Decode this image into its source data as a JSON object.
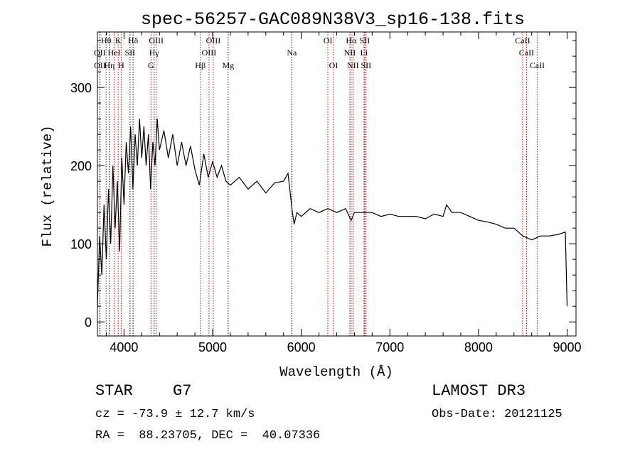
{
  "chart_data": {
    "type": "line",
    "title": "spec-56257-GAC089N38V3_sp16-138.fits",
    "xlabel": "Wavelength (Å)",
    "ylabel": "Flux (relative)",
    "xlim": [
      3700,
      9100
    ],
    "ylim": [
      -18,
      371
    ],
    "xticks": [
      4000,
      5000,
      6000,
      7000,
      8000,
      9000
    ],
    "yticks": [
      0,
      100,
      200,
      300
    ],
    "grid": false,
    "series": [
      {
        "name": "spectrum",
        "color": "#000000",
        "x": [
          3700,
          3725,
          3750,
          3775,
          3800,
          3825,
          3850,
          3875,
          3900,
          3925,
          3950,
          3975,
          4000,
          4025,
          4050,
          4075,
          4100,
          4125,
          4150,
          4175,
          4200,
          4225,
          4250,
          4275,
          4300,
          4325,
          4350,
          4375,
          4400,
          4450,
          4500,
          4550,
          4600,
          4650,
          4700,
          4750,
          4800,
          4850,
          4900,
          4950,
          5000,
          5050,
          5100,
          5150,
          5200,
          5300,
          5400,
          5500,
          5600,
          5700,
          5800,
          5850,
          5900,
          5920,
          5950,
          6000,
          6100,
          6200,
          6300,
          6400,
          6500,
          6563,
          6600,
          6700,
          6800,
          6900,
          7000,
          7100,
          7200,
          7300,
          7400,
          7500,
          7600,
          7640,
          7700,
          7800,
          7900,
          8000,
          8100,
          8200,
          8300,
          8400,
          8500,
          8600,
          8700,
          8800,
          8900,
          8980,
          9000
        ],
        "y": [
          20,
          110,
          60,
          150,
          80,
          170,
          100,
          200,
          120,
          180,
          90,
          210,
          150,
          230,
          190,
          250,
          170,
          240,
          200,
          260,
          210,
          250,
          200,
          240,
          170,
          230,
          200,
          260,
          220,
          245,
          210,
          240,
          200,
          230,
          200,
          225,
          195,
          175,
          215,
          185,
          205,
          185,
          200,
          180,
          175,
          185,
          170,
          180,
          165,
          178,
          180,
          190,
          140,
          125,
          140,
          135,
          145,
          140,
          145,
          140,
          145,
          130,
          140,
          140,
          140,
          135,
          138,
          135,
          135,
          135,
          132,
          138,
          135,
          150,
          140,
          140,
          135,
          130,
          128,
          125,
          120,
          120,
          110,
          105,
          110,
          110,
          112,
          115,
          20
        ]
      }
    ],
    "lines": [
      {
        "label": "Hθ",
        "wave": 3798,
        "color": "#cc0000"
      },
      {
        "label": "K",
        "wave": 3934,
        "color": "#cc0000"
      },
      {
        "label": "Hδ",
        "wave": 4102,
        "color": "#000000"
      },
      {
        "label": "OIII",
        "wave": 4363,
        "color": "#cc0000"
      },
      {
        "label": "OIII",
        "wave": 5007,
        "color": "#cc0000"
      },
      {
        "label": "OI",
        "wave": 6300,
        "color": "#cc0000"
      },
      {
        "label": "Hα",
        "wave": 6563,
        "color": "#cc0000"
      },
      {
        "label": "SII",
        "wave": 6716,
        "color": "#cc0000"
      },
      {
        "label": "CaII",
        "wave": 8498,
        "color": "#cc0000"
      },
      {
        "label": "OII",
        "wave": 3727,
        "color": "#cc0000"
      },
      {
        "label": "HeI",
        "wave": 3889,
        "color": "#cc0000"
      },
      {
        "label": "SII",
        "wave": 4068,
        "color": "#000000"
      },
      {
        "label": "Hγ",
        "wave": 4340,
        "color": "#000000"
      },
      {
        "label": "OIII",
        "wave": 4959,
        "color": "#cc0000"
      },
      {
        "label": "Na",
        "wave": 5893,
        "color": "#000000"
      },
      {
        "label": "NII",
        "wave": 6548,
        "color": "#cc0000"
      },
      {
        "label": "Li",
        "wave": 6708,
        "color": "#cc0000"
      },
      {
        "label": "CaII",
        "wave": 8542,
        "color": "#cc0000"
      },
      {
        "label": "OII",
        "wave": 3729,
        "color": "#000000"
      },
      {
        "label": "Hη",
        "wave": 3835,
        "color": "#000000"
      },
      {
        "label": "H",
        "wave": 3968,
        "color": "#cc0000"
      },
      {
        "label": "G",
        "wave": 4304,
        "color": "#cc0000"
      },
      {
        "label": "Hβ",
        "wave": 4861,
        "color": "#cc0000"
      },
      {
        "label": "Mg",
        "wave": 5175,
        "color": "#000000"
      },
      {
        "label": "OI",
        "wave": 6364,
        "color": "#cc0000"
      },
      {
        "label": "NII",
        "wave": 6583,
        "color": "#cc0000"
      },
      {
        "label": "SII",
        "wave": 6731,
        "color": "#cc0000"
      },
      {
        "label": "CaII",
        "wave": 8662,
        "color": "#cc0000"
      }
    ]
  },
  "info": {
    "object_class": "STAR",
    "subclass": "G7",
    "cz": "cz = -73.9 ± 12.7 km/s",
    "coords": "RA =  88.23705, DEC =  40.07336",
    "survey": "LAMOST DR3",
    "obs_date": "Obs-Date: 20121125"
  }
}
